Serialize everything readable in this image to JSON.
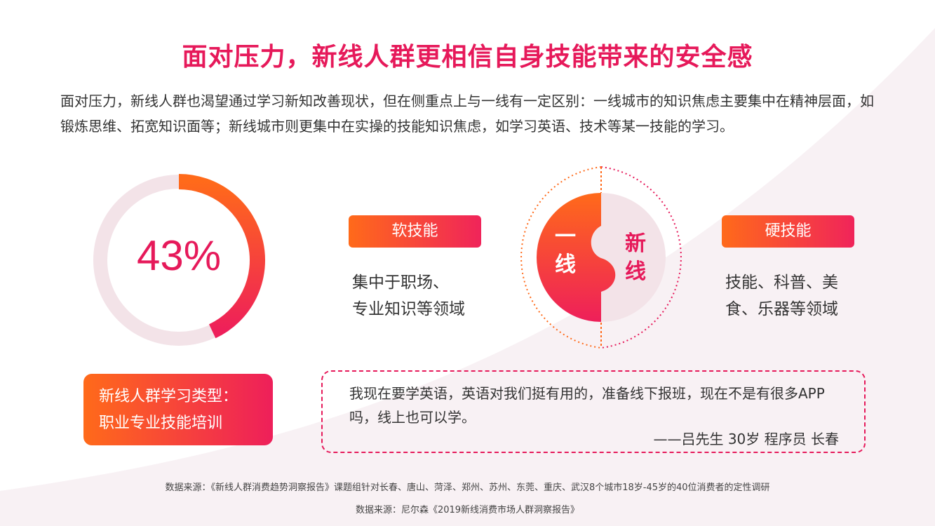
{
  "title": "面对压力，新线人群更相信自身技能带来的安全感",
  "intro": "面对压力，新线人群也渴望通过学习新知改善现状，但在侧重点上与一线有一定区别：一线城市的知识焦虑主要集中在精神层面，如锻炼思维、拓宽知识面等；新线城市则更集中在实操的技能知识焦虑，如学习英语、技术等某一技能的学习。",
  "stat": {
    "percent_label": "43%",
    "percent_value": 43
  },
  "soft_skill": {
    "label": "软技能",
    "desc_line1": "集中于职场、",
    "desc_line2": "专业知识等领域"
  },
  "puzzle": {
    "left_line1": "一",
    "left_line2": "线",
    "right_line1": "新",
    "right_line2": "线"
  },
  "hard_skill": {
    "label": "硬技能",
    "desc_line1": "技能、科普、美",
    "desc_line2": "食、乐器等领域"
  },
  "learning_type": {
    "line1": "新线人群学习类型：",
    "line2": "职业专业技能培训"
  },
  "quote": {
    "text": "我现在要学英语，英语对我们挺有用的，准备线下报班，现在不是有很多APP吗，线上也可以学。",
    "author": "——吕先生 30岁 程序员 长春"
  },
  "sources": {
    "line1": "数据来源：《新线人群消费趋势洞察报告》课题组针对长春、唐山、菏泽、郑州、苏州、东莞、重庆、武汉8个城市18岁-45岁的40位消费者的定性调研",
    "line2": "数据来源：尼尔森《2019新线消费市场人群洞察报告》"
  },
  "colors": {
    "accent": "#e6195a",
    "orange": "#ff6a1a",
    "ring_bg": "#f3e3e8",
    "swoosh": "#f7f0f3"
  }
}
